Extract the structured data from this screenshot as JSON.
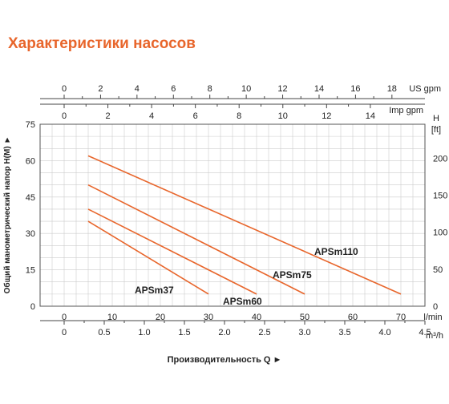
{
  "page": {
    "title": "Характеристики насосов"
  },
  "chart_data": {
    "type": "line",
    "title": "",
    "xlabel": "Производительность Q ►",
    "ylabel": "Общий манометрический напор H(M) ►",
    "x_unit": "l/min",
    "y_unit": "",
    "xlim": [
      -5,
      75
    ],
    "ylim": [
      0,
      75
    ],
    "x_ticks": [
      0,
      10,
      20,
      30,
      40,
      50,
      60,
      70
    ],
    "y_ticks": [
      0,
      15,
      30,
      45,
      60,
      75
    ],
    "grid": true,
    "secondary_axes": {
      "us_gpm": {
        "label": "US gpm",
        "ticks": [
          "0",
          "2",
          "4",
          "6",
          "8",
          "10",
          "12",
          "14",
          "16",
          "18"
        ]
      },
      "imp_gpm": {
        "label": "Imp gpm",
        "ticks": [
          "0",
          "2",
          "4",
          "6",
          "8",
          "10",
          "12",
          "14"
        ]
      },
      "m3h": {
        "label": "m³/h",
        "ticks": [
          "0",
          "0.5",
          "1.0",
          "1.5",
          "2.0",
          "2.5",
          "3.0",
          "3.5",
          "4.0",
          "4.5"
        ]
      },
      "ft": {
        "label_top": "H",
        "label_unit": "[ft]",
        "ticks": [
          "0",
          "50",
          "100",
          "150",
          "200"
        ]
      }
    },
    "series": [
      {
        "name": "APSm110",
        "x": [
          5,
          70
        ],
        "y": [
          62,
          5
        ]
      },
      {
        "name": "APSm75",
        "x": [
          5,
          50
        ],
        "y": [
          50,
          5
        ]
      },
      {
        "name": "APSm60",
        "x": [
          5,
          40
        ],
        "y": [
          40,
          5
        ]
      },
      {
        "name": "APSm37",
        "x": [
          5,
          30
        ],
        "y": [
          35,
          5
        ]
      }
    ],
    "line_color": "#e8662c",
    "grid_color": "#cccccc"
  }
}
